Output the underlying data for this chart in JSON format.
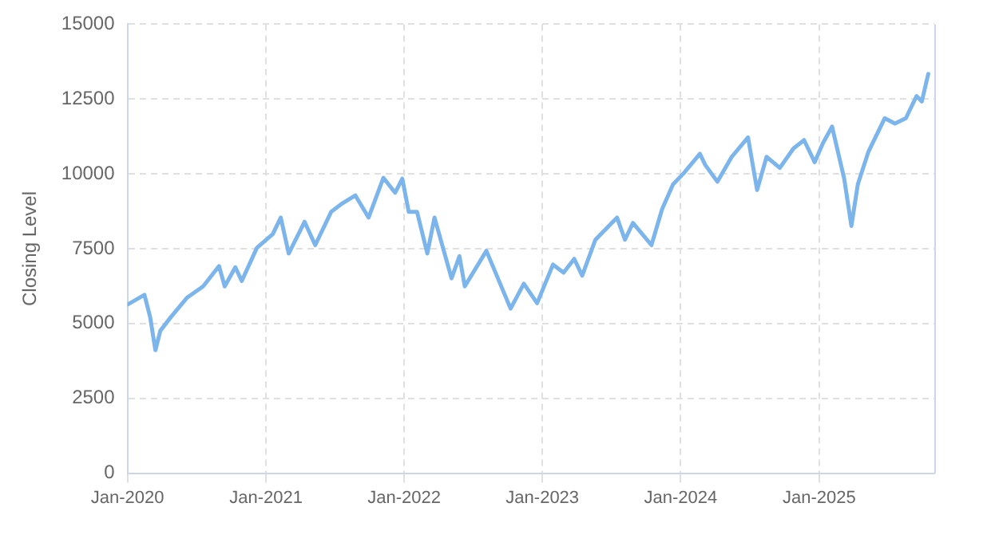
{
  "chart_data": {
    "type": "line",
    "ylabel": "Closing Level",
    "color": "#7cb5ec",
    "grid": true,
    "legend": false,
    "marker": "none",
    "line_style": "solid",
    "xlim": [
      "2020-01-01",
      "2025-11-01"
    ],
    "xticks": [
      {
        "value": "2020-01-01",
        "label": "Jan-2020"
      },
      {
        "value": "2021-01-01",
        "label": "Jan-2021"
      },
      {
        "value": "2022-01-01",
        "label": "Jan-2022"
      },
      {
        "value": "2023-01-01",
        "label": "Jan-2023"
      },
      {
        "value": "2024-01-01",
        "label": "Jan-2024"
      },
      {
        "value": "2025-01-01",
        "label": "Jan-2025"
      }
    ],
    "ylim": [
      0,
      15000
    ],
    "yticks": [
      0,
      2500,
      5000,
      7500,
      10000,
      12500,
      15000
    ],
    "x": [
      "2020-01-01",
      "2020-02-15",
      "2020-03-01",
      "2020-03-15",
      "2020-03-28",
      "2020-04-25",
      "2020-06-07",
      "2020-07-19",
      "2020-08-30",
      "2020-09-14",
      "2020-10-12",
      "2020-10-29",
      "2020-12-08",
      "2021-01-19",
      "2021-02-09",
      "2021-03-02",
      "2021-04-13",
      "2021-05-11",
      "2021-06-22",
      "2021-07-21",
      "2021-08-25",
      "2021-09-29",
      "2021-11-07",
      "2021-12-08",
      "2021-12-27",
      "2022-01-13",
      "2022-02-04",
      "2022-03-03",
      "2022-03-22",
      "2022-05-06",
      "2022-05-27",
      "2022-06-10",
      "2022-08-06",
      "2022-10-09",
      "2022-11-13",
      "2022-12-18",
      "2023-01-29",
      "2023-02-26",
      "2023-03-26",
      "2023-04-16",
      "2023-05-21",
      "2023-07-17",
      "2023-08-07",
      "2023-08-28",
      "2023-10-16",
      "2023-11-13",
      "2023-12-12",
      "2024-01-09",
      "2024-02-21",
      "2024-03-06",
      "2024-04-07",
      "2024-05-15",
      "2024-06-27",
      "2024-07-21",
      "2024-08-15",
      "2024-09-19",
      "2024-10-25",
      "2024-11-22",
      "2024-12-20",
      "2025-01-11",
      "2025-02-04",
      "2025-03-08",
      "2025-03-27",
      "2025-04-13",
      "2025-05-11",
      "2025-06-23",
      "2025-07-20",
      "2025-08-18",
      "2025-09-15",
      "2025-09-29",
      "2025-10-16"
    ],
    "values": [
      5630,
      5960,
      5220,
      4110,
      4760,
      5220,
      5870,
      6240,
      6920,
      6240,
      6880,
      6420,
      7530,
      7990,
      8540,
      7340,
      8400,
      7620,
      8730,
      9010,
      9280,
      8540,
      9870,
      9370,
      9840,
      8730,
      8730,
      7340,
      8540,
      6510,
      7250,
      6240,
      7430,
      5500,
      6330,
      5680,
      6970,
      6700,
      7160,
      6600,
      7800,
      8540,
      7800,
      8360,
      7620,
      8820,
      9650,
      10020,
      10670,
      10300,
      9740,
      10570,
      11220,
      9460,
      10570,
      10200,
      10850,
      11130,
      10390,
      11030,
      11580,
      9840,
      8260,
      9650,
      10740,
      11860,
      11680,
      11860,
      12600,
      12420,
      13340
    ]
  }
}
